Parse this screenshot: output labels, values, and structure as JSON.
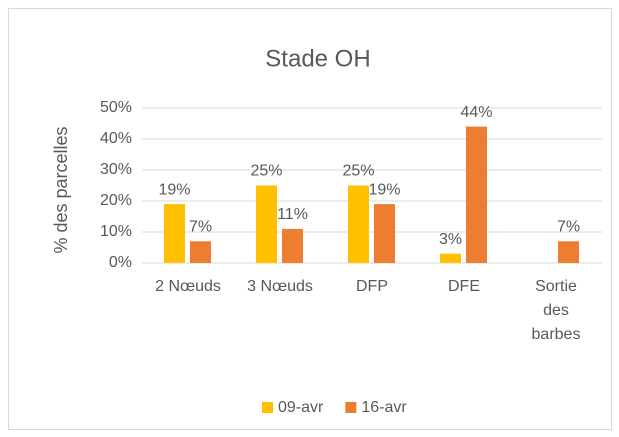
{
  "chart_data": {
    "type": "bar",
    "title": "Stade OH",
    "y_label": "% des parcelles",
    "categories": [
      "2 Nœuds",
      "3 Nœuds",
      "DFP",
      "DFE",
      "Sortie des barbes"
    ],
    "series": [
      {
        "name": "09-avr",
        "color": "#ffc000",
        "values": [
          19,
          25,
          25,
          3,
          null
        ],
        "value_labels": [
          "19%",
          "25%",
          "25%",
          "3%",
          null
        ]
      },
      {
        "name": "16-avr",
        "color": "#ed7d31",
        "values": [
          7,
          11,
          19,
          44,
          7
        ],
        "value_labels": [
          "7%",
          "11%",
          "19%",
          "44%",
          "7%"
        ]
      }
    ],
    "ylim": [
      0,
      50
    ],
    "yticks": [
      {
        "value": 0,
        "label": "0%"
      },
      {
        "value": 10,
        "label": "10%"
      },
      {
        "value": 20,
        "label": "20%"
      },
      {
        "value": 30,
        "label": "30%"
      },
      {
        "value": 40,
        "label": "40%"
      },
      {
        "value": 50,
        "label": "50%"
      }
    ],
    "grid": true,
    "legend": "bottom"
  }
}
